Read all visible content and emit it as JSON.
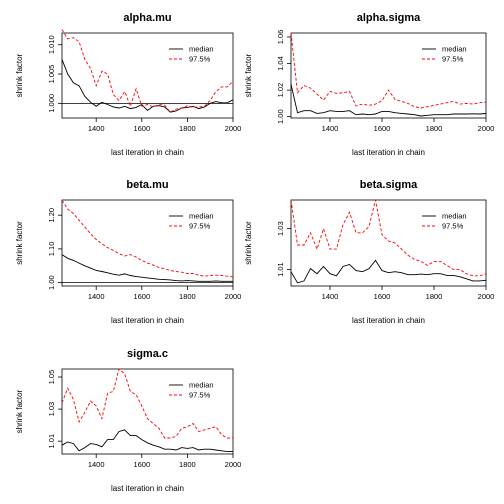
{
  "chart_data": [
    {
      "type": "line",
      "title": "alpha.mu",
      "xlabel": "last iteration in chain",
      "ylabel": "shrink factor",
      "xlim": [
        1250,
        2000
      ],
      "ylim": [
        0.9975,
        1.012
      ],
      "xticks": [
        1400,
        1600,
        1800,
        2000
      ],
      "yticks": [
        1.0,
        1.005,
        1.01
      ],
      "ytick_labels": [
        "1.000",
        "1.005",
        "1.010"
      ],
      "reference_line": 1.0,
      "legend": {
        "position": "top-right",
        "entries": [
          "median",
          "97.5%"
        ]
      },
      "x": [
        1250,
        1275,
        1300,
        1325,
        1350,
        1375,
        1400,
        1425,
        1450,
        1475,
        1500,
        1525,
        1550,
        1575,
        1600,
        1625,
        1650,
        1675,
        1700,
        1725,
        1750,
        1775,
        1800,
        1825,
        1850,
        1875,
        1900,
        1925,
        1950,
        1975,
        2000
      ],
      "series": [
        {
          "name": "median",
          "color": "#000000",
          "dash": "solid",
          "values": [
            1.0075,
            1.005,
            1.0035,
            1.003,
            1.0012,
            1.0002,
            0.9995,
            1.0002,
            0.9998,
            0.9994,
            0.9992,
            0.9995,
            0.9991,
            0.9993,
            0.9998,
            0.9988,
            0.9995,
            0.9996,
            0.9994,
            0.9985,
            0.9987,
            0.9992,
            0.9993,
            0.9995,
            0.9991,
            0.9994,
            1.0,
            1.0003,
            1.0001,
            1.0001,
            1.0006
          ]
        },
        {
          "name": "97.5%",
          "color": "#ff0000",
          "dash": "dashed",
          "values": [
            1.0126,
            1.011,
            1.0112,
            1.0105,
            1.0075,
            1.006,
            1.003,
            1.0055,
            1.005,
            1.0015,
            1.0005,
            1.002,
            0.9995,
            1.0025,
            0.9995,
            0.9998,
            0.9994,
            0.9998,
            0.9997,
            0.9985,
            0.999,
            0.9992,
            0.9996,
            0.9993,
            0.9994,
            0.9995,
            1.0005,
            1.002,
            1.0028,
            1.0028,
            1.0038
          ]
        }
      ]
    },
    {
      "type": "line",
      "title": "alpha.sigma",
      "xlabel": "last iteration in chain",
      "ylabel": "shrink factor",
      "xlim": [
        1250,
        2000
      ],
      "ylim": [
        0.999,
        1.063
      ],
      "xticks": [
        1400,
        1600,
        1800,
        2000
      ],
      "yticks": [
        1.0,
        1.02,
        1.04,
        1.06
      ],
      "ytick_labels": [
        "1.00",
        "1.02",
        "1.04",
        "1.06"
      ],
      "legend": {
        "position": "top-right",
        "entries": [
          "median",
          "97.5%"
        ]
      },
      "x": [
        1250,
        1275,
        1300,
        1325,
        1350,
        1375,
        1400,
        1425,
        1450,
        1475,
        1500,
        1525,
        1550,
        1575,
        1600,
        1625,
        1650,
        1675,
        1700,
        1725,
        1750,
        1775,
        1800,
        1825,
        1850,
        1875,
        1900,
        1925,
        1950,
        1975,
        2000
      ],
      "series": [
        {
          "name": "median",
          "color": "#000000",
          "dash": "solid",
          "values": [
            1.0245,
            1.003,
            1.0045,
            1.0045,
            1.0025,
            1.003,
            1.0045,
            1.004,
            1.004,
            1.0045,
            1.0015,
            1.002,
            1.0015,
            1.002,
            1.004,
            1.004,
            1.003,
            1.0025,
            1.002,
            1.0015,
            1.0005,
            1.001,
            1.0015,
            1.0015,
            1.0015,
            1.002,
            1.002,
            1.002,
            1.0022,
            1.002,
            1.0024
          ]
        },
        {
          "name": "97.5%",
          "color": "#ff0000",
          "dash": "dashed",
          "values": [
            1.063,
            1.018,
            1.0235,
            1.0215,
            1.017,
            1.0125,
            1.019,
            1.0175,
            1.018,
            1.019,
            1.008,
            1.0095,
            1.0085,
            1.0095,
            1.012,
            1.02,
            1.013,
            1.0115,
            1.01,
            1.0075,
            1.0065,
            1.0075,
            1.0085,
            1.0095,
            1.0105,
            1.0115,
            1.0095,
            1.01,
            1.0095,
            1.0105,
            1.011
          ]
        }
      ]
    },
    {
      "type": "line",
      "title": "beta.mu",
      "xlabel": "last iteration in chain",
      "ylabel": "shrink factor",
      "xlim": [
        1250,
        2000
      ],
      "ylim": [
        0.99,
        1.245
      ],
      "xticks": [
        1400,
        1600,
        1800,
        2000
      ],
      "yticks": [
        1.0,
        1.1,
        1.2
      ],
      "ytick_labels": [
        "1.00",
        "1.10",
        "1.20"
      ],
      "reference_line": 1.0,
      "legend": {
        "position": "top-right",
        "entries": [
          "median",
          "97.5%"
        ]
      },
      "x": [
        1250,
        1275,
        1300,
        1325,
        1350,
        1375,
        1400,
        1425,
        1450,
        1475,
        1500,
        1525,
        1550,
        1575,
        1600,
        1625,
        1650,
        1675,
        1700,
        1725,
        1750,
        1775,
        1800,
        1825,
        1850,
        1875,
        1900,
        1925,
        1950,
        1975,
        2000
      ],
      "series": [
        {
          "name": "median",
          "color": "#000000",
          "dash": "solid",
          "values": [
            1.083,
            1.072,
            1.066,
            1.058,
            1.05,
            1.043,
            1.036,
            1.033,
            1.029,
            1.025,
            1.022,
            1.026,
            1.021,
            1.018,
            1.016,
            1.014,
            1.012,
            1.01,
            1.009,
            1.008,
            1.006,
            1.005,
            1.006,
            1.005,
            1.004,
            1.004,
            1.004,
            1.005,
            1.004,
            1.004,
            1.004
          ]
        },
        {
          "name": "97.5%",
          "color": "#ff0000",
          "dash": "dashed",
          "values": [
            1.244,
            1.218,
            1.205,
            1.185,
            1.165,
            1.145,
            1.128,
            1.115,
            1.104,
            1.096,
            1.086,
            1.079,
            1.083,
            1.076,
            1.066,
            1.058,
            1.052,
            1.045,
            1.041,
            1.036,
            1.033,
            1.031,
            1.027,
            1.027,
            1.022,
            1.019,
            1.021,
            1.022,
            1.021,
            1.019,
            1.017
          ]
        }
      ]
    },
    {
      "type": "line",
      "title": "beta.sigma",
      "xlabel": "last iteration in chain",
      "ylabel": "shrink factor",
      "xlim": [
        1250,
        2000
      ],
      "ylim": [
        1.002,
        1.044
      ],
      "xticks": [
        1400,
        1600,
        1800,
        2000
      ],
      "yticks": [
        1.01,
        1.03
      ],
      "ytick_labels": [
        "1.01",
        "1.03"
      ],
      "legend": {
        "position": "top-right",
        "entries": [
          "median",
          "97.5%"
        ]
      },
      "x": [
        1250,
        1275,
        1300,
        1325,
        1350,
        1375,
        1400,
        1425,
        1450,
        1475,
        1500,
        1525,
        1550,
        1575,
        1600,
        1625,
        1650,
        1675,
        1700,
        1725,
        1750,
        1775,
        1800,
        1825,
        1850,
        1875,
        1900,
        1925,
        1950,
        1975,
        2000
      ],
      "series": [
        {
          "name": "median",
          "color": "#000000",
          "dash": "solid",
          "values": [
            1.009,
            1.0035,
            1.0045,
            1.0105,
            1.008,
            1.0115,
            1.008,
            1.007,
            1.0115,
            1.0125,
            1.0095,
            1.009,
            1.0105,
            1.0145,
            1.0095,
            1.0085,
            1.009,
            1.0085,
            1.0075,
            1.0075,
            1.0078,
            1.0075,
            1.008,
            1.008,
            1.0072,
            1.0072,
            1.0065,
            1.0055,
            1.0045,
            1.0045,
            1.0048
          ]
        },
        {
          "name": "97.5%",
          "color": "#ff0000",
          "dash": "dashed",
          "values": [
            1.044,
            1.022,
            1.022,
            1.028,
            1.02,
            1.03,
            1.02,
            1.02,
            1.032,
            1.038,
            1.028,
            1.028,
            1.031,
            1.044,
            1.027,
            1.024,
            1.023,
            1.02,
            1.017,
            1.015,
            1.014,
            1.012,
            1.014,
            1.014,
            1.012,
            1.01,
            1.01,
            1.008,
            1.007,
            1.007,
            1.008
          ]
        }
      ]
    },
    {
      "type": "line",
      "title": "sigma.c",
      "xlabel": "last iteration in chain",
      "ylabel": "shrink factor",
      "xlim": [
        1250,
        2000
      ],
      "ylim": [
        1.002,
        1.055
      ],
      "xticks": [
        1400,
        1600,
        1800,
        2000
      ],
      "yticks": [
        1.01,
        1.03,
        1.05
      ],
      "ytick_labels": [
        "1.01",
        "1.03",
        "1.05"
      ],
      "legend": {
        "position": "top-right",
        "entries": [
          "median",
          "97.5%"
        ]
      },
      "x": [
        1250,
        1275,
        1300,
        1325,
        1350,
        1375,
        1400,
        1425,
        1450,
        1475,
        1500,
        1525,
        1550,
        1575,
        1600,
        1625,
        1650,
        1675,
        1700,
        1725,
        1750,
        1775,
        1800,
        1825,
        1850,
        1875,
        1900,
        1925,
        1950,
        1975,
        2000
      ],
      "series": [
        {
          "name": "median",
          "color": "#000000",
          "dash": "solid",
          "values": [
            1.0075,
            1.0095,
            1.0085,
            1.004,
            1.006,
            1.0085,
            1.008,
            1.0065,
            1.011,
            1.011,
            1.016,
            1.017,
            1.0135,
            1.0135,
            1.011,
            1.009,
            1.0075,
            1.0065,
            1.005,
            1.005,
            1.0045,
            1.006,
            1.0055,
            1.006,
            1.0045,
            1.005,
            1.005,
            1.0045,
            1.004,
            1.0035,
            1.0035
          ]
        },
        {
          "name": "97.5%",
          "color": "#ff0000",
          "dash": "dashed",
          "values": [
            1.034,
            1.043,
            1.036,
            1.022,
            1.028,
            1.035,
            1.032,
            1.024,
            1.04,
            1.041,
            1.055,
            1.052,
            1.041,
            1.039,
            1.032,
            1.024,
            1.021,
            1.018,
            1.012,
            1.012,
            1.013,
            1.018,
            1.019,
            1.021,
            1.016,
            1.017,
            1.018,
            1.019,
            1.014,
            1.012,
            1.012
          ]
        }
      ]
    }
  ]
}
